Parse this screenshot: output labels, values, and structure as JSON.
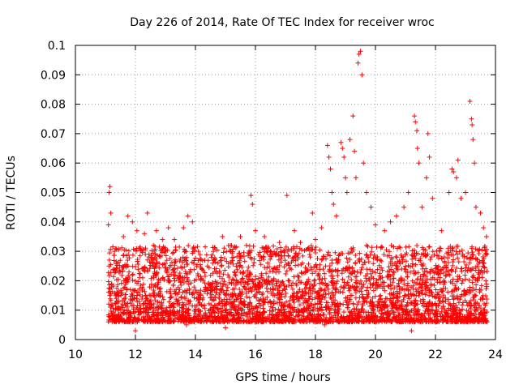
{
  "chart_data": {
    "type": "scatter",
    "title": "Day 226 of 2014, Rate Of TEC Index for receiver wroc",
    "xlabel": "GPS time / hours",
    "ylabel": "ROTI / TECUs",
    "xlim": [
      10,
      24
    ],
    "ylim": [
      0,
      0.1
    ],
    "xticks": [
      10,
      12,
      14,
      16,
      18,
      20,
      22,
      24
    ],
    "yticks": [
      0,
      0.01,
      0.02,
      0.03,
      0.04,
      0.05,
      0.06,
      0.07,
      0.08,
      0.09,
      0.1
    ],
    "xtick_labels": [
      "10",
      "12",
      "14",
      "16",
      "18",
      "20",
      "22",
      "24"
    ],
    "ytick_labels": [
      "0",
      "0.01",
      "0.02",
      "0.03",
      "0.04",
      "0.05",
      "0.06",
      "0.07",
      "0.08",
      "0.09",
      "0.1"
    ],
    "grid": true,
    "marker": "+",
    "marker_color": "#ff0000",
    "series": [
      {
        "name": "ROTI",
        "points": [
          [
            11.15,
            0.052
          ],
          [
            11.12,
            0.05
          ],
          [
            11.1,
            0.039
          ],
          [
            11.18,
            0.043
          ],
          [
            11.12,
            0.025
          ],
          [
            11.3,
            0.03
          ],
          [
            11.6,
            0.035
          ],
          [
            11.75,
            0.042
          ],
          [
            11.9,
            0.04
          ],
          [
            12.05,
            0.037
          ],
          [
            12.3,
            0.036
          ],
          [
            12.4,
            0.043
          ],
          [
            12.6,
            0.032
          ],
          [
            12.7,
            0.037
          ],
          [
            12.9,
            0.034
          ],
          [
            13.1,
            0.038
          ],
          [
            13.3,
            0.034
          ],
          [
            13.6,
            0.038
          ],
          [
            13.75,
            0.042
          ],
          [
            13.9,
            0.04
          ],
          [
            14.1,
            0.03
          ],
          [
            14.4,
            0.025
          ],
          [
            14.6,
            0.03
          ],
          [
            14.9,
            0.035
          ],
          [
            15.2,
            0.032
          ],
          [
            15.5,
            0.035
          ],
          [
            15.85,
            0.049
          ],
          [
            15.9,
            0.046
          ],
          [
            16.0,
            0.037
          ],
          [
            16.3,
            0.035
          ],
          [
            16.5,
            0.03
          ],
          [
            16.8,
            0.033
          ],
          [
            17.05,
            0.049
          ],
          [
            17.3,
            0.037
          ],
          [
            17.5,
            0.033
          ],
          [
            17.9,
            0.043
          ],
          [
            18.0,
            0.034
          ],
          [
            18.2,
            0.038
          ],
          [
            18.4,
            0.066
          ],
          [
            18.45,
            0.062
          ],
          [
            18.5,
            0.058
          ],
          [
            18.55,
            0.05
          ],
          [
            18.6,
            0.046
          ],
          [
            18.7,
            0.042
          ],
          [
            18.85,
            0.067
          ],
          [
            18.9,
            0.065
          ],
          [
            18.95,
            0.062
          ],
          [
            19.0,
            0.055
          ],
          [
            19.05,
            0.05
          ],
          [
            19.15,
            0.068
          ],
          [
            19.25,
            0.076
          ],
          [
            19.3,
            0.064
          ],
          [
            19.35,
            0.055
          ],
          [
            19.42,
            0.094
          ],
          [
            19.45,
            0.097
          ],
          [
            19.5,
            0.098
          ],
          [
            19.55,
            0.09
          ],
          [
            19.6,
            0.06
          ],
          [
            19.7,
            0.05
          ],
          [
            19.85,
            0.045
          ],
          [
            20.0,
            0.039
          ],
          [
            20.3,
            0.037
          ],
          [
            20.5,
            0.04
          ],
          [
            20.7,
            0.042
          ],
          [
            20.95,
            0.045
          ],
          [
            21.1,
            0.05
          ],
          [
            21.3,
            0.076
          ],
          [
            21.33,
            0.074
          ],
          [
            21.38,
            0.071
          ],
          [
            21.4,
            0.065
          ],
          [
            21.45,
            0.06
          ],
          [
            21.55,
            0.045
          ],
          [
            21.7,
            0.055
          ],
          [
            21.75,
            0.07
          ],
          [
            21.8,
            0.062
          ],
          [
            21.9,
            0.048
          ],
          [
            22.2,
            0.037
          ],
          [
            22.45,
            0.05
          ],
          [
            22.55,
            0.058
          ],
          [
            22.6,
            0.057
          ],
          [
            22.7,
            0.055
          ],
          [
            22.75,
            0.061
          ],
          [
            22.85,
            0.048
          ],
          [
            23.0,
            0.05
          ],
          [
            23.15,
            0.081
          ],
          [
            23.2,
            0.075
          ],
          [
            23.22,
            0.073
          ],
          [
            23.25,
            0.068
          ],
          [
            23.3,
            0.06
          ],
          [
            23.35,
            0.045
          ],
          [
            23.5,
            0.043
          ],
          [
            23.6,
            0.038
          ],
          [
            23.7,
            0.035
          ],
          [
            23.72,
            0.006
          ],
          [
            23.68,
            0.02
          ],
          [
            12.0,
            0.003
          ],
          [
            13.7,
            0.005
          ],
          [
            21.2,
            0.003
          ],
          [
            15.0,
            0.004
          ],
          [
            18.3,
            0.005
          ]
        ]
      }
    ]
  }
}
